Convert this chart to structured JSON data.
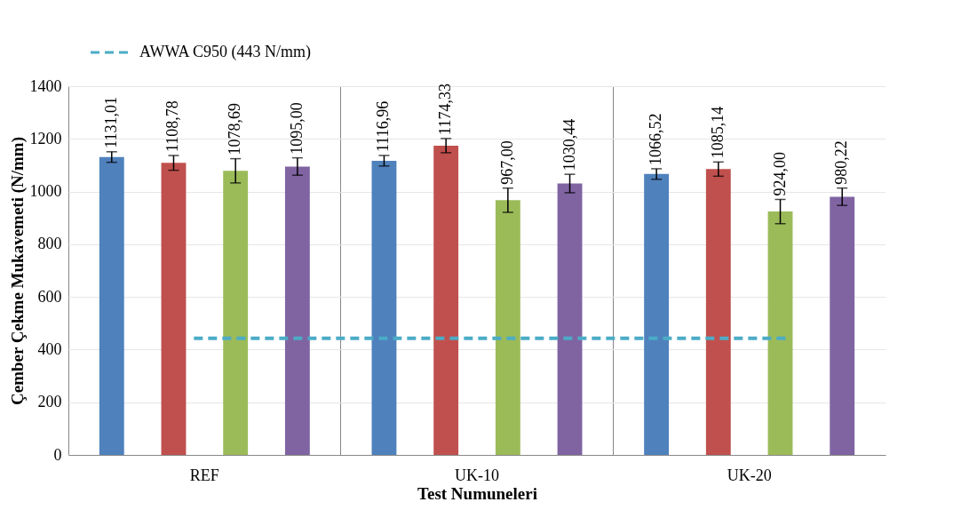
{
  "chart_data": {
    "type": "bar",
    "xlabel": "Test Numuneleri",
    "ylabel": "Çember Çekme Mukavemeti (N/mm)",
    "categories": [
      "REF",
      "UK-10",
      "UK-20"
    ],
    "series": [
      {
        "color": "#4f81bd",
        "values": [
          1131.01,
          1116.96,
          1066.52
        ],
        "errors": [
          20,
          20,
          20
        ],
        "value_labels": [
          "1131,01",
          "1116,96",
          "1066,52"
        ]
      },
      {
        "color": "#c0504d",
        "values": [
          1108.78,
          1174.33,
          1085.14
        ],
        "errors": [
          28,
          27,
          27
        ],
        "value_labels": [
          "1108,78",
          "1174,33",
          "1085,14"
        ]
      },
      {
        "color": "#9bbb59",
        "values": [
          1078.69,
          967.0,
          924.0
        ],
        "errors": [
          46,
          46,
          46
        ],
        "value_labels": [
          "1078,69",
          "967,00",
          "924,00"
        ]
      },
      {
        "color": "#8064a2",
        "values": [
          1095.0,
          1030.44,
          980.22
        ],
        "errors": [
          33,
          35,
          33
        ],
        "value_labels": [
          "1095,00",
          "1030,44",
          "980,22"
        ]
      }
    ],
    "ylim": [
      0,
      1400
    ],
    "yticks": [
      0,
      200,
      400,
      600,
      800,
      1000,
      1200,
      1400
    ],
    "grid": true,
    "legend": "top left",
    "ref_lines": [
      {
        "axis": "y",
        "value": 443,
        "label": "AWWA C950 (443 N/mm)",
        "color": "#4bacc6",
        "line_style": "dashed"
      }
    ]
  }
}
